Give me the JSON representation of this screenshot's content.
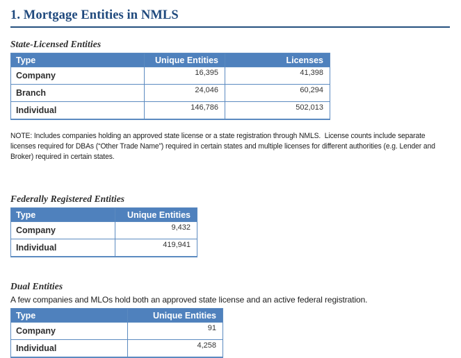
{
  "title": "1. Mortgage Entities in NMLS",
  "colors": {
    "title_text": "#1F497D",
    "title_rule": "#24507E",
    "table_header_bg": "#4F81BD",
    "table_header_text": "#FFFFFF",
    "table_border": "#5B8AC0",
    "body_text": "#262626"
  },
  "state_section": {
    "heading": "State-Licensed Entities",
    "columns": [
      "Type",
      "Unique Entities",
      "Licenses"
    ],
    "rows": [
      [
        "Company",
        "16,395",
        "41,398"
      ],
      [
        "Branch",
        "24,046",
        "60,294"
      ],
      [
        "Individual",
        "146,786",
        "502,013"
      ]
    ],
    "note": "NOTE: Includes companies holding an approved state license or a state registration through NMLS.  License counts include separate licenses required for DBAs (“Other Trade Name”) required in certain states and multiple licenses for different authorities (e.g. Lender and Broker) required in certain states."
  },
  "federal_section": {
    "heading": "Federally Registered Entities",
    "columns": [
      "Type",
      "Unique Entities"
    ],
    "rows": [
      [
        "Company",
        "9,432"
      ],
      [
        "Individual",
        "419,941"
      ]
    ]
  },
  "dual_section": {
    "heading": "Dual Entities",
    "intro": "A few companies and MLOs hold both an approved state license and an active federal registration.",
    "columns": [
      "Type",
      "Unique Entities"
    ],
    "rows": [
      [
        "Company",
        "91"
      ],
      [
        "Individual",
        "4,258"
      ]
    ]
  }
}
